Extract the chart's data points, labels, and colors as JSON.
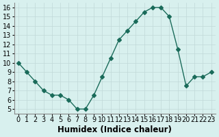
{
  "x": [
    0,
    1,
    2,
    3,
    4,
    5,
    6,
    7,
    8,
    9,
    10,
    11,
    12,
    13,
    14,
    15,
    16,
    17,
    18,
    19,
    20,
    21,
    22,
    23
  ],
  "y": [
    10,
    9,
    8,
    7,
    6.5,
    6.5,
    6,
    5,
    5,
    6.5,
    8.5,
    10.5,
    12.5,
    13.5,
    14.5,
    15.5,
    16,
    16,
    15,
    11.5,
    7.5,
    8.5,
    8.5,
    9
  ],
  "line_color": "#1a6b5a",
  "marker": "D",
  "marker_size": 3,
  "bg_color": "#d8f0ee",
  "grid_color": "#c0d8d8",
  "xlabel": "Humidex (Indice chaleur)",
  "xlim": [
    -0.5,
    23.5
  ],
  "ylim": [
    4.5,
    16.5
  ],
  "yticks": [
    5,
    6,
    7,
    8,
    9,
    10,
    11,
    12,
    13,
    14,
    15,
    16
  ],
  "xticks": [
    0,
    1,
    2,
    3,
    4,
    5,
    6,
    7,
    8,
    9,
    10,
    11,
    12,
    13,
    14,
    15,
    16,
    17,
    18,
    19,
    20,
    21,
    22,
    23
  ],
  "tick_fontsize": 7,
  "xlabel_fontsize": 8.5
}
